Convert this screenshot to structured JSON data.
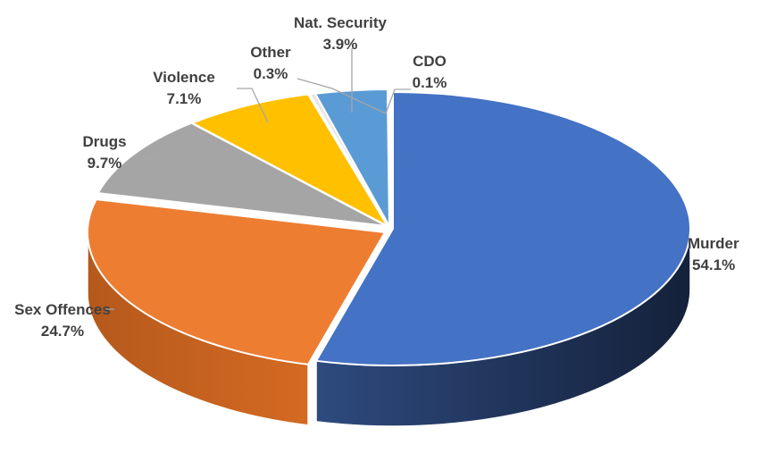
{
  "chart_data": {
    "type": "pie",
    "style": "3d-exploded",
    "title": "",
    "slices": [
      {
        "label": "Murder",
        "value": 54.1,
        "value_label": "54.1%",
        "color": "#4472C4"
      },
      {
        "label": "Sex Offences",
        "value": 24.7,
        "value_label": "24.7%",
        "color": "#ED7D31"
      },
      {
        "label": "Drugs",
        "value": 9.7,
        "value_label": "9.7%",
        "color": "#A5A5A5"
      },
      {
        "label": "Violence",
        "value": 7.1,
        "value_label": "7.1%",
        "color": "#FFC000"
      },
      {
        "label": "Other",
        "value": 0.3,
        "value_label": "0.3%",
        "color": "#E7E6E6"
      },
      {
        "label": "Nat. Security",
        "value": 3.9,
        "value_label": "3.9%",
        "color": "#5B9BD5"
      },
      {
        "label": "CDO",
        "value": 0.1,
        "value_label": "0.1%",
        "color": "#70AD47"
      }
    ]
  }
}
